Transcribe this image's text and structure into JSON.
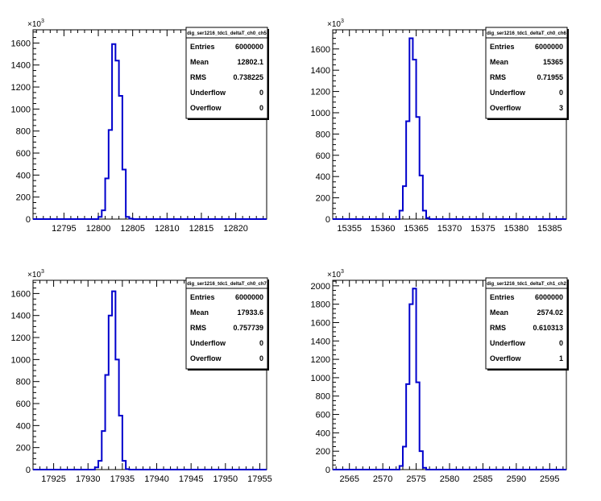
{
  "chart_data": [
    {
      "type": "bar",
      "histogram_name": "dig_ser1216_tdc1_deltaT_ch0_ch5",
      "exponent_label": "×10",
      "exponent_power": "3",
      "xlim": [
        12790.5,
        12824.5
      ],
      "ylim": [
        0,
        1720
      ],
      "xticks": [
        "12795",
        "12800",
        "12805",
        "12810",
        "12815",
        "12820"
      ],
      "yticks": [
        "0",
        "200",
        "400",
        "600",
        "800",
        "1000",
        "1200",
        "1400",
        "1600"
      ],
      "bins": {
        "x": [
          12799.5,
          12800,
          12800.5,
          12801,
          12801.5,
          12802,
          12802.5,
          12803,
          12803.5,
          12804,
          12804.5
        ],
        "values": [
          0,
          20,
          80,
          370,
          810,
          1590,
          1440,
          1120,
          450,
          20,
          5
        ]
      },
      "stats": [
        {
          "label": "Entries",
          "value": "6000000"
        },
        {
          "label": "Mean",
          "value": "12802.1"
        },
        {
          "label": "RMS",
          "value": "0.738225"
        },
        {
          "label": "Underflow",
          "value": "0"
        },
        {
          "label": "Overflow",
          "value": "0"
        }
      ]
    },
    {
      "type": "bar",
      "histogram_name": "dig_ser1216_tdc1_deltaT_ch0_ch6",
      "exponent_label": "×10",
      "exponent_power": "3",
      "xlim": [
        15352.5,
        15387.5
      ],
      "ylim": [
        0,
        1780
      ],
      "xticks": [
        "15355",
        "15360",
        "15365",
        "15370",
        "15375",
        "15380",
        "15385"
      ],
      "yticks": [
        "0",
        "200",
        "400",
        "600",
        "800",
        "1000",
        "1200",
        "1400",
        "1600"
      ],
      "bins": {
        "x": [
          15362,
          15362.5,
          15363,
          15363.5,
          15364,
          15364.5,
          15365,
          15365.5,
          15366,
          15366.5,
          15367
        ],
        "values": [
          0,
          80,
          310,
          920,
          1700,
          1500,
          960,
          410,
          80,
          10,
          0
        ]
      },
      "stats": [
        {
          "label": "Entries",
          "value": "6000000"
        },
        {
          "label": "Mean",
          "value": "15365"
        },
        {
          "label": "RMS",
          "value": "0.71955"
        },
        {
          "label": "Underflow",
          "value": "0"
        },
        {
          "label": "Overflow",
          "value": "3"
        }
      ]
    },
    {
      "type": "bar",
      "histogram_name": "dig_ser1216_tdc1_deltaT_ch0_ch7",
      "exponent_label": "×10",
      "exponent_power": "3",
      "xlim": [
        17922,
        17956
      ],
      "ylim": [
        0,
        1720
      ],
      "xticks": [
        "17925",
        "17930",
        "17935",
        "17940",
        "17945",
        "17950",
        "17955"
      ],
      "yticks": [
        "0",
        "200",
        "400",
        "600",
        "800",
        "1000",
        "1200",
        "1400",
        "1600"
      ],
      "bins": {
        "x": [
          17930.5,
          17931,
          17931.5,
          17932,
          17932.5,
          17933,
          17933.5,
          17934,
          17934.5,
          17935,
          17935.5
        ],
        "values": [
          0,
          20,
          80,
          350,
          860,
          1400,
          1620,
          1000,
          490,
          80,
          5
        ]
      },
      "stats": [
        {
          "label": "Entries",
          "value": "6000000"
        },
        {
          "label": "Mean",
          "value": "17933.6"
        },
        {
          "label": "RMS",
          "value": "0.757739"
        },
        {
          "label": "Underflow",
          "value": "0"
        },
        {
          "label": "Overflow",
          "value": "0"
        }
      ]
    },
    {
      "type": "bar",
      "histogram_name": "dig_ser1216_tdc1_deltaT_ch1_ch2",
      "exponent_label": "×10",
      "exponent_power": "3",
      "xlim": [
        2562.5,
        2597.5
      ],
      "ylim": [
        0,
        2060
      ],
      "xticks": [
        "2565",
        "2570",
        "2575",
        "2580",
        "2585",
        "2590",
        "2595"
      ],
      "yticks": [
        "0",
        "200",
        "400",
        "600",
        "800",
        "1000",
        "1200",
        "1400",
        "1600",
        "1800",
        "2000"
      ],
      "bins": {
        "x": [
          2572,
          2572.5,
          2573,
          2573.5,
          2574,
          2574.5,
          2575,
          2575.5,
          2576,
          2576.5
        ],
        "values": [
          0,
          40,
          250,
          930,
          1800,
          1970,
          950,
          200,
          20,
          0
        ]
      },
      "stats": [
        {
          "label": "Entries",
          "value": "6000000"
        },
        {
          "label": "Mean",
          "value": "2574.02"
        },
        {
          "label": "RMS",
          "value": "0.610313"
        },
        {
          "label": "Underflow",
          "value": "0"
        },
        {
          "label": "Overflow",
          "value": "1"
        }
      ]
    }
  ]
}
